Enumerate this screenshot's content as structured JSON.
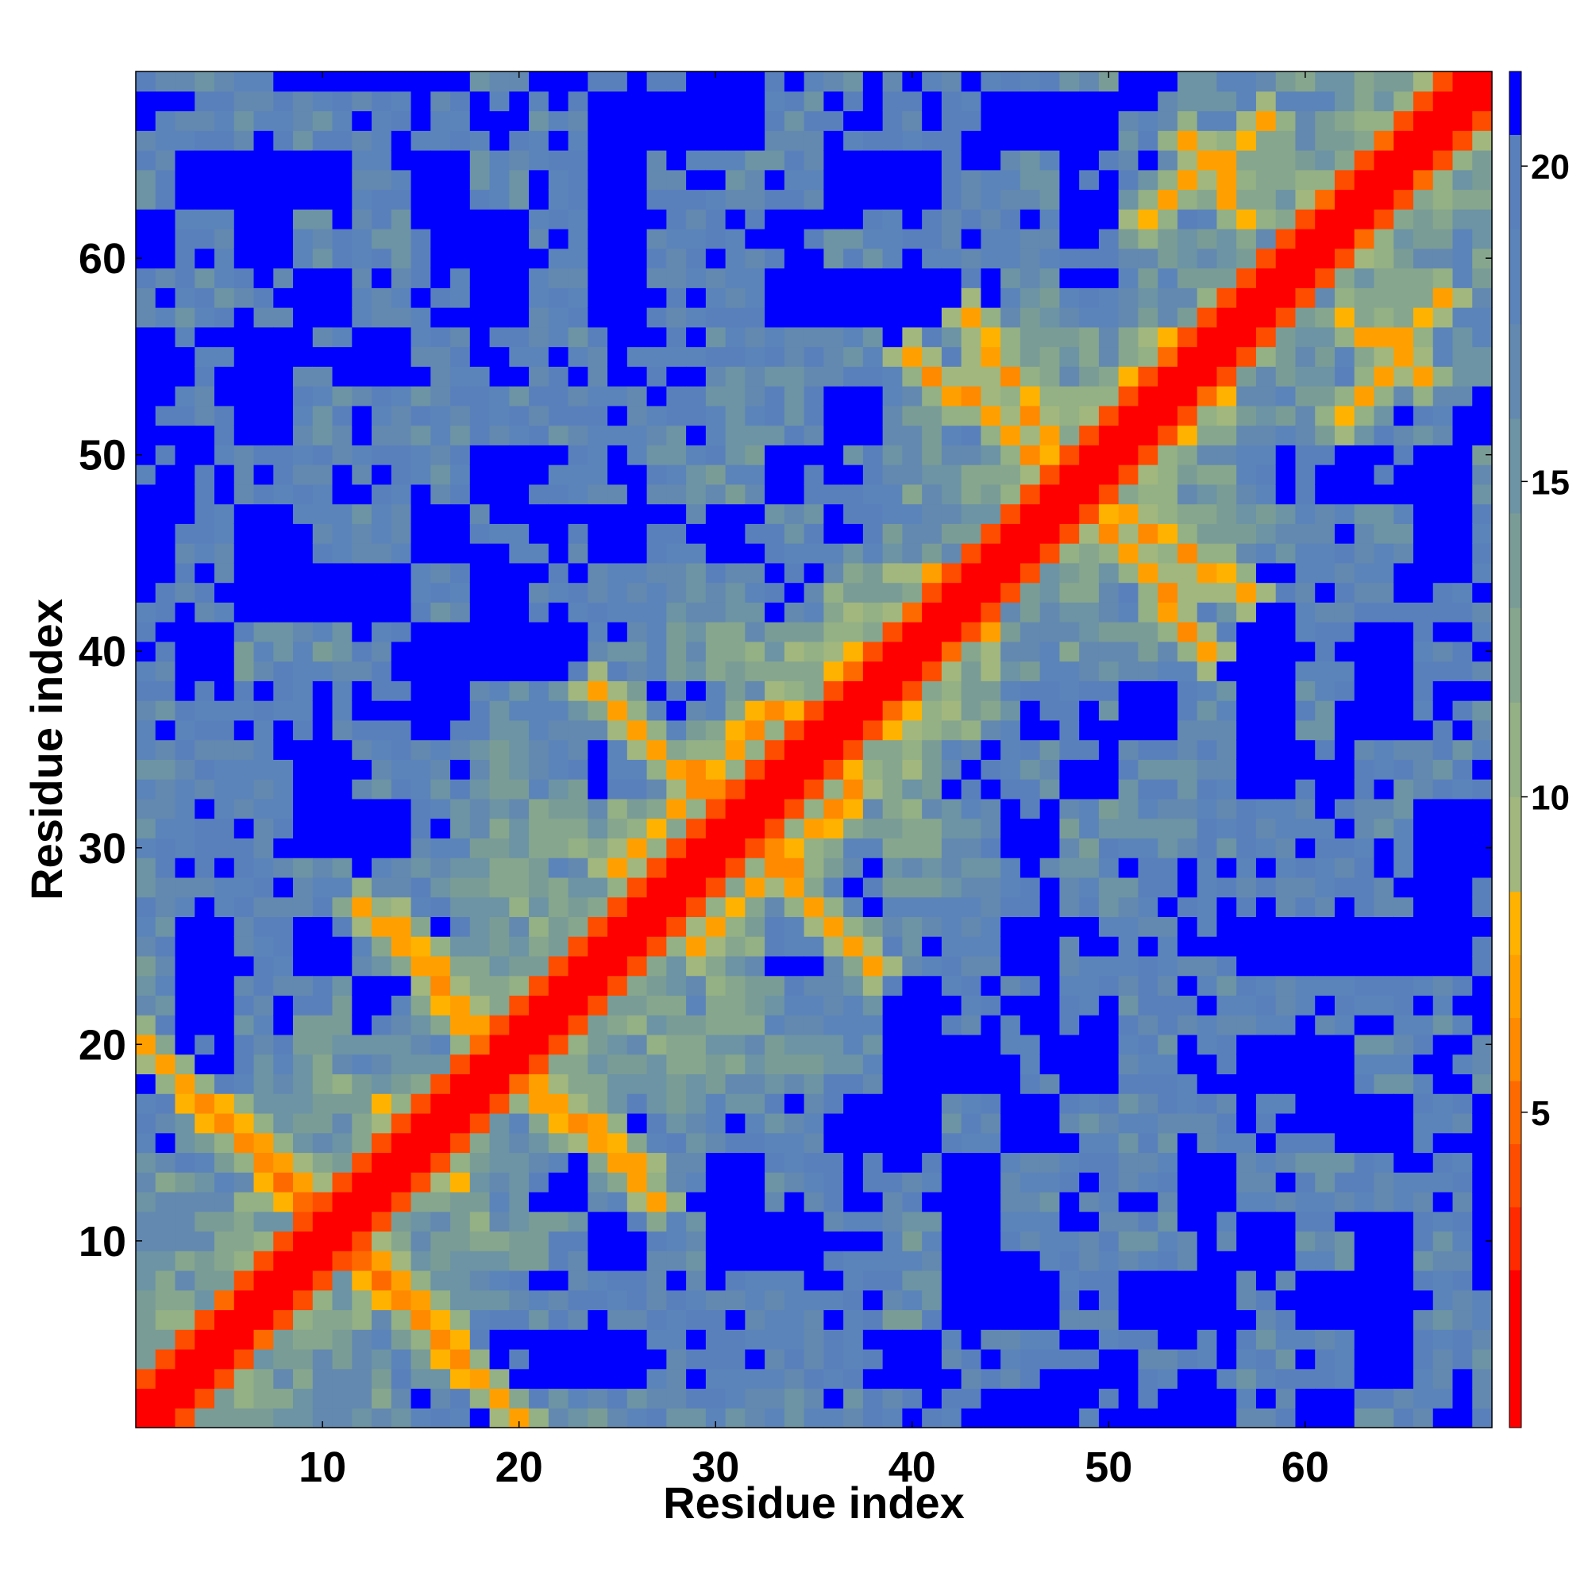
{
  "chart_data": {
    "type": "heatmap",
    "title": "",
    "xlabel": "Residue index",
    "ylabel": "Residue index",
    "n_residues": 69,
    "x_range": [
      0.5,
      69.5
    ],
    "y_range": [
      0.5,
      69.5
    ],
    "x_ticks": [
      10,
      20,
      30,
      40,
      50,
      60
    ],
    "y_ticks": [
      10,
      20,
      30,
      40,
      50,
      60
    ],
    "colorbar": {
      "range": [
        0,
        21.5
      ],
      "ticks": [
        5,
        10,
        15,
        20
      ],
      "levels": [
        {
          "from": 0,
          "to": 2.5,
          "color": "#ff0000"
        },
        {
          "from": 2.5,
          "to": 3.5,
          "color": "#ff2a00"
        },
        {
          "from": 3.5,
          "to": 4.5,
          "color": "#ff4d00"
        },
        {
          "from": 4.5,
          "to": 5.5,
          "color": "#ff6a00"
        },
        {
          "from": 5.5,
          "to": 6.5,
          "color": "#ff8a00"
        },
        {
          "from": 6.5,
          "to": 7.5,
          "color": "#ffa000"
        },
        {
          "from": 7.5,
          "to": 8.5,
          "color": "#ffb300"
        },
        {
          "from": 8.5,
          "to": 10,
          "color": "#a2b77e"
        },
        {
          "from": 10,
          "to": 11.5,
          "color": "#94b085"
        },
        {
          "from": 11.5,
          "to": 13,
          "color": "#86a68e"
        },
        {
          "from": 13,
          "to": 14.5,
          "color": "#7a9c97"
        },
        {
          "from": 14.5,
          "to": 16,
          "color": "#6c94a4"
        },
        {
          "from": 16,
          "to": 17.5,
          "color": "#6389b0"
        },
        {
          "from": 17.5,
          "to": 19,
          "color": "#5b84ba"
        },
        {
          "from": 19,
          "to": 20.5,
          "color": "#5a80bc"
        },
        {
          "from": 20.5,
          "to": 21.5,
          "color": "#0000ff"
        }
      ]
    },
    "matrix_note": "symmetric residue distance map, diagonal = 0",
    "contact_segments": [
      {
        "i": [
          1,
          18
        ],
        "j": [
          20,
          3
        ],
        "strength": 6
      },
      {
        "i": [
          4,
          16
        ],
        "j": [
          17,
          5
        ],
        "strength": 5
      },
      {
        "i": [
          6,
          14
        ],
        "j": [
          16,
          8
        ],
        "strength": 6
      },
      {
        "i": [
          12,
          18
        ],
        "j": [
          27,
          21
        ],
        "strength": 6
      },
      {
        "i": [
          16,
          26
        ],
        "j": [
          22,
          14
        ],
        "strength": 6
      },
      {
        "i": [
          25,
          33
        ],
        "j": [
          29,
          37
        ],
        "strength": 6
      },
      {
        "i": [
          29,
          38
        ],
        "j": [
          34,
          24
        ],
        "strength": 6
      },
      {
        "i": [
          43,
          47
        ],
        "j": [
          57,
          51
        ],
        "strength": 6
      },
      {
        "i": [
          47,
          55
        ],
        "j": [
          50,
          40
        ],
        "strength": 6
      },
      {
        "i": [
          52,
          58
        ],
        "j": [
          62,
          67
        ],
        "strength": 6
      },
      {
        "i": [
          62,
          66
        ],
        "j": [
          57,
          54
        ],
        "strength": 6
      }
    ]
  }
}
